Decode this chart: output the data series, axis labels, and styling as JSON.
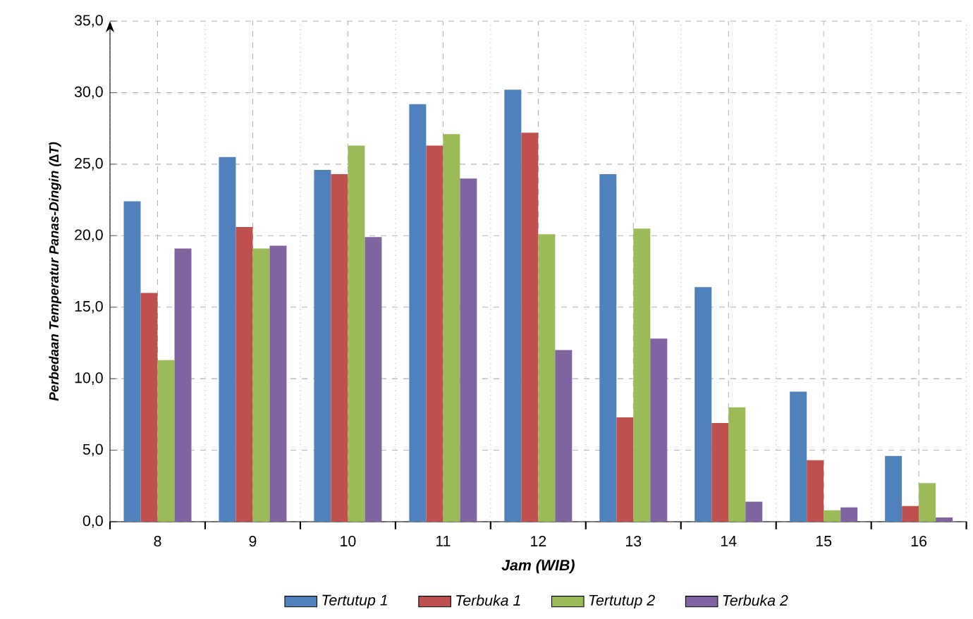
{
  "chart_data": {
    "type": "bar",
    "xlabel": "Jam (WIB)",
    "ylabel": "Perbedaan Temperatur Panas-Dingin (∆T)",
    "categories": [
      "8",
      "9",
      "10",
      "11",
      "12",
      "13",
      "14",
      "15",
      "16"
    ],
    "series": [
      {
        "name": "Tertutup 1",
        "color": "#4f81bd",
        "values": [
          22.4,
          25.5,
          24.6,
          29.2,
          30.2,
          24.3,
          16.4,
          9.1,
          4.6
        ]
      },
      {
        "name": "Terbuka 1",
        "color": "#c0504d",
        "values": [
          16.0,
          20.6,
          24.3,
          26.3,
          27.2,
          7.3,
          6.9,
          4.3,
          1.1
        ]
      },
      {
        "name": "Tertutup 2",
        "color": "#9bbb59",
        "values": [
          11.3,
          19.1,
          26.3,
          27.1,
          20.1,
          20.5,
          8.0,
          0.8,
          2.7
        ]
      },
      {
        "name": "Terbuka 2",
        "color": "#8064a2",
        "values": [
          19.1,
          19.3,
          19.9,
          24.0,
          12.0,
          12.8,
          1.4,
          1.0,
          0.3
        ]
      }
    ],
    "ylim": [
      0,
      35
    ],
    "yticks": [
      {
        "value": 0,
        "label": "0,0"
      },
      {
        "value": 5,
        "label": "5,0"
      },
      {
        "value": 10,
        "label": "10,0"
      },
      {
        "value": 15,
        "label": "15,0"
      },
      {
        "value": 20,
        "label": "20,0"
      },
      {
        "value": 25,
        "label": "25,0"
      },
      {
        "value": 30,
        "label": "30,0"
      },
      {
        "value": 35,
        "label": "35,0"
      }
    ],
    "grid": true,
    "legend": "bottom"
  }
}
